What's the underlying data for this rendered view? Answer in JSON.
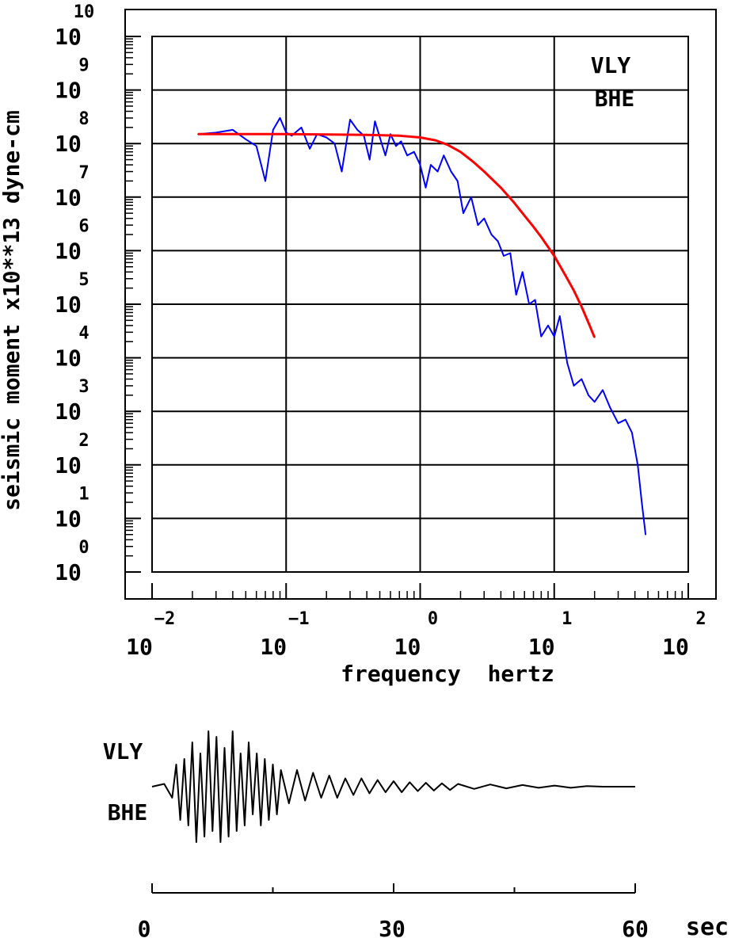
{
  "spectrum_chart": {
    "station": "VLY",
    "component": "BHE",
    "ylabel": "seismic moment x10**13 dyne-cm",
    "xlabel": "frequency  hertz",
    "x_tick_base": "10",
    "x_tick_exponents": [
      "−2",
      "−1",
      "0",
      "1",
      "2"
    ],
    "y_tick_base": "10",
    "y_tick_exponents": [
      "0",
      "1",
      "2",
      "3",
      "4",
      "5",
      "6",
      "7",
      "8",
      "9",
      "10"
    ]
  },
  "seismogram": {
    "station": "VLY",
    "component": "BHE",
    "time_ticks": [
      "0",
      "30",
      "60"
    ],
    "time_unit": "sec"
  },
  "chart_data": [
    {
      "type": "line",
      "title": "",
      "xlabel": "frequency  hertz",
      "ylabel": "seismic moment x10**13 dyne-cm",
      "x_scale": "log",
      "y_scale": "log",
      "xlim": [
        0.01,
        100
      ],
      "ylim": [
        1,
        10000000000
      ],
      "grid": true,
      "annotations": [
        "VLY",
        "BHE"
      ],
      "series": [
        {
          "color": "#0000ff",
          "x": [
            0.022,
            0.03,
            0.04,
            0.05,
            0.06,
            0.07,
            0.08,
            0.09,
            0.1,
            0.11,
            0.13,
            0.15,
            0.17,
            0.2,
            0.23,
            0.26,
            0.3,
            0.34,
            0.38,
            0.42,
            0.46,
            0.5,
            0.55,
            0.6,
            0.66,
            0.72,
            0.8,
            0.9,
            1.0,
            1.1,
            1.2,
            1.35,
            1.5,
            1.7,
            1.9,
            2.1,
            2.4,
            2.7,
            3.0,
            3.4,
            3.8,
            4.2,
            4.7,
            5.2,
            5.8,
            6.5,
            7.2,
            8.0,
            9.0,
            10.0,
            11.0,
            12.5,
            14.0,
            16.0,
            18.0,
            20.0,
            23.0,
            26.0,
            30.0,
            34.0,
            38.0,
            42.0,
            45.0,
            48.0
          ],
          "y": [
            150000000,
            160000000,
            180000000,
            120000000,
            90000000,
            20000000,
            180000000,
            300000000,
            160000000,
            140000000,
            200000000,
            80000000,
            150000000,
            130000000,
            100000000,
            30000000,
            280000000,
            180000000,
            140000000,
            50000000,
            260000000,
            130000000,
            60000000,
            150000000,
            90000000,
            110000000,
            60000000,
            70000000,
            40000000,
            15000000,
            40000000,
            30000000,
            60000000,
            30000000,
            20000000,
            5000000,
            10000000,
            3000000,
            4000000,
            2000000,
            1500000,
            800000,
            900000,
            150000,
            400000,
            100000,
            120000,
            25000,
            40000,
            25000,
            60000,
            8000,
            3000,
            4000,
            2000,
            1500,
            2500,
            1200,
            600,
            700,
            400,
            100,
            20,
            5
          ]
        },
        {
          "color": "#ff0000",
          "x": [
            0.022,
            0.05,
            0.1,
            0.2,
            0.4,
            0.7,
            1.0,
            1.3,
            1.6,
            2.0,
            2.5,
            3.0,
            4.0,
            5.0,
            6.0,
            7.0,
            8.0,
            10.0,
            12.0,
            14.0,
            16.0,
            18.0,
            20.0
          ],
          "y": [
            150000000,
            150000000,
            150000000,
            148000000,
            145000000,
            140000000,
            130000000,
            115000000,
            95000000,
            70000000,
            45000000,
            30000000,
            15000000,
            8000000,
            4500000,
            2800000,
            1800000,
            800000,
            360000,
            180000,
            90000,
            45000,
            24000
          ]
        }
      ]
    },
    {
      "type": "line",
      "title": "",
      "xlabel": "sec",
      "ylabel": "",
      "xlim": [
        0,
        60
      ],
      "annotations": [
        "VLY",
        "BHE"
      ],
      "series": [
        {
          "color": "#000000",
          "x": [
            0,
            1.5,
            2.5,
            3,
            3.5,
            4,
            4.5,
            5,
            5.5,
            6,
            6.5,
            7,
            7.5,
            8,
            8.5,
            9,
            9.5,
            10,
            10.5,
            11,
            11.5,
            12,
            12.5,
            13,
            13.5,
            14,
            14.5,
            15,
            15.5,
            16,
            17,
            18,
            19,
            20,
            21,
            22,
            23,
            24,
            25,
            26,
            27,
            28,
            29,
            30,
            31,
            32,
            33,
            34,
            35,
            36,
            37,
            38,
            40,
            42,
            44,
            46,
            48,
            50,
            52,
            54,
            56,
            58,
            60
          ],
          "y": [
            0,
            0.05,
            -0.2,
            0.4,
            -0.6,
            0.5,
            -0.7,
            0.8,
            -1.0,
            0.6,
            -0.9,
            1.0,
            -0.8,
            0.9,
            -1.0,
            0.7,
            -0.9,
            1.0,
            -0.8,
            0.6,
            -0.7,
            0.8,
            -0.5,
            0.6,
            -0.7,
            0.5,
            -0.6,
            0.4,
            -0.5,
            0.3,
            -0.3,
            0.3,
            -0.25,
            0.25,
            -0.2,
            0.2,
            -0.2,
            0.15,
            -0.15,
            0.15,
            -0.12,
            0.12,
            -0.1,
            0.1,
            -0.1,
            0.08,
            -0.08,
            0.07,
            -0.07,
            0.06,
            -0.06,
            0.05,
            -0.04,
            0.04,
            -0.03,
            0.03,
            -0.02,
            0.02,
            -0.02,
            0.01,
            0,
            0,
            0
          ]
        }
      ]
    }
  ]
}
